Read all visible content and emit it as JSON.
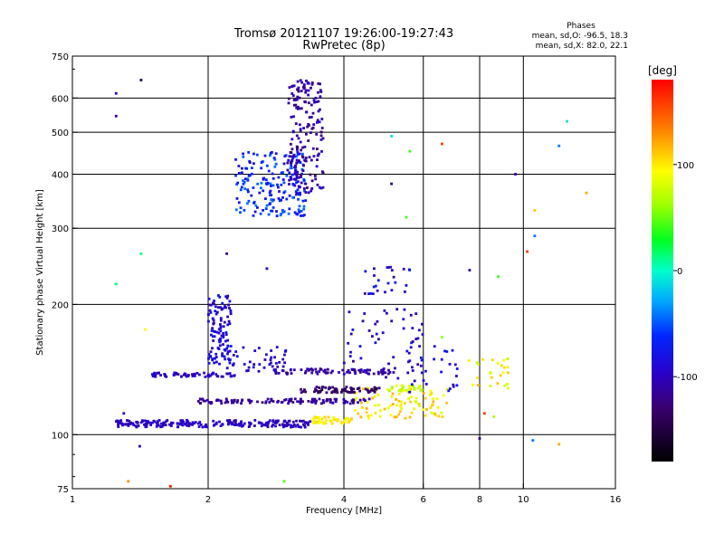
{
  "header": {
    "title_line1": "Tromsø 20121107 19:26:00-19:27:43",
    "title_line2": "RwPretec (8p)"
  },
  "stats": {
    "heading": "Phases",
    "line1": "mean, sd,O: -96.5, 18.3",
    "line2": "mean, sd,X:  82.0, 22.1"
  },
  "colorbar": {
    "title": "[deg]",
    "range": [
      -180,
      180
    ],
    "ticks": [
      {
        "value": 100,
        "label": "100"
      },
      {
        "value": 0,
        "label": "0"
      },
      {
        "value": -100,
        "label": "-100"
      }
    ]
  },
  "chart_data": {
    "type": "scatter",
    "xlabel": "Frequency [MHz]",
    "ylabel": "Stationary phase Virtual Height [km]",
    "xscale": "log",
    "yscale": "log",
    "xlim": [
      1,
      16
    ],
    "ylim": [
      75,
      750
    ],
    "grid": true,
    "xticks": [
      {
        "value": 1,
        "label": "1"
      },
      {
        "value": 2,
        "label": "2"
      },
      {
        "value": 4,
        "label": "4"
      },
      {
        "value": 6,
        "label": "6"
      },
      {
        "value": 8,
        "label": "8"
      },
      {
        "value": 10,
        "label": "10"
      },
      {
        "value": 16,
        "label": "16"
      }
    ],
    "yticks": [
      {
        "value": 75,
        "label": "75"
      },
      {
        "value": 100,
        "label": "100"
      },
      {
        "value": 200,
        "label": "200"
      },
      {
        "value": 300,
        "label": "300"
      },
      {
        "value": 400,
        "label": "400"
      },
      {
        "value": 500,
        "label": "500"
      },
      {
        "value": 600,
        "label": "600"
      },
      {
        "value": 750,
        "label": "750"
      }
    ],
    "xgrid": [
      2,
      4,
      6,
      8,
      10
    ],
    "ygrid": [
      100,
      200,
      300,
      400,
      500,
      600
    ],
    "clusters": [
      {
        "x": [
          1.25,
          3.4
        ],
        "y": [
          104,
          108
        ],
        "phase": [
          -110,
          -90
        ],
        "count": 220
      },
      {
        "x": [
          3.4,
          4.2
        ],
        "y": [
          106,
          110
        ],
        "phase": [
          85,
          110
        ],
        "count": 45
      },
      {
        "x": [
          4.2,
          6.9
        ],
        "y": [
          109,
          128
        ],
        "phase": [
          80,
          120
        ],
        "count": 90
      },
      {
        "x": [
          1.9,
          4.6
        ],
        "y": [
          118,
          121
        ],
        "phase": [
          -125,
          -100
        ],
        "count": 110
      },
      {
        "x": [
          3.2,
          4.8
        ],
        "y": [
          125,
          129
        ],
        "phase": [
          -150,
          -120
        ],
        "count": 70
      },
      {
        "x": [
          5.0,
          6.0
        ],
        "y": [
          126,
          130
        ],
        "phase": [
          60,
          90
        ],
        "count": 30
      },
      {
        "x": [
          1.5,
          2.3
        ],
        "y": [
          136,
          139
        ],
        "phase": [
          -110,
          -85
        ],
        "count": 60
      },
      {
        "x": [
          2.8,
          5.2
        ],
        "y": [
          138,
          142
        ],
        "phase": [
          -125,
          -95
        ],
        "count": 80
      },
      {
        "x": [
          2.2,
          3.0
        ],
        "y": [
          140,
          160
        ],
        "phase": [
          -110,
          -80
        ],
        "count": 45
      },
      {
        "x": [
          2.0,
          2.25
        ],
        "y": [
          145,
          210
        ],
        "phase": [
          -110,
          -70
        ],
        "count": 110
      },
      {
        "x": [
          4.0,
          6.0
        ],
        "y": [
          135,
          195
        ],
        "phase": [
          -115,
          -80
        ],
        "count": 45
      },
      {
        "x": [
          5.5,
          7.2
        ],
        "y": [
          125,
          165
        ],
        "phase": [
          -110,
          -70
        ],
        "count": 35
      },
      {
        "x": [
          7.5,
          9.3
        ],
        "y": [
          128,
          150
        ],
        "phase": [
          70,
          120
        ],
        "count": 25
      },
      {
        "x": [
          2.3,
          3.3
        ],
        "y": [
          320,
          450
        ],
        "phase": [
          -90,
          -40
        ],
        "count": 190
      },
      {
        "x": [
          3.0,
          3.6
        ],
        "y": [
          360,
          660
        ],
        "phase": [
          -130,
          -90
        ],
        "count": 180
      },
      {
        "x": [
          4.4,
          5.6
        ],
        "y": [
          210,
          245
        ],
        "phase": [
          -120,
          -60
        ],
        "count": 25
      }
    ],
    "outliers": [
      {
        "x": 1.25,
        "y": 615,
        "phase": -105
      },
      {
        "x": 1.25,
        "y": 545,
        "phase": -120
      },
      {
        "x": 1.42,
        "y": 660,
        "phase": -150
      },
      {
        "x": 1.3,
        "y": 112,
        "phase": -100
      },
      {
        "x": 1.41,
        "y": 94,
        "phase": -110
      },
      {
        "x": 1.25,
        "y": 223,
        "phase": 10
      },
      {
        "x": 1.42,
        "y": 262,
        "phase": 15
      },
      {
        "x": 1.45,
        "y": 175,
        "phase": 95
      },
      {
        "x": 1.33,
        "y": 78,
        "phase": 130
      },
      {
        "x": 1.65,
        "y": 76,
        "phase": 170
      },
      {
        "x": 2.95,
        "y": 78,
        "phase": 45
      },
      {
        "x": 2.2,
        "y": 262,
        "phase": -110
      },
      {
        "x": 2.7,
        "y": 242,
        "phase": -105
      },
      {
        "x": 5.6,
        "y": 452,
        "phase": 40
      },
      {
        "x": 5.1,
        "y": 490,
        "phase": -10
      },
      {
        "x": 6.6,
        "y": 470,
        "phase": 160
      },
      {
        "x": 5.1,
        "y": 380,
        "phase": -120
      },
      {
        "x": 5.5,
        "y": 318,
        "phase": 40
      },
      {
        "x": 7.6,
        "y": 240,
        "phase": -110
      },
      {
        "x": 8.8,
        "y": 232,
        "phase": 40
      },
      {
        "x": 9.6,
        "y": 400,
        "phase": -110
      },
      {
        "x": 10.6,
        "y": 330,
        "phase": 110
      },
      {
        "x": 10.6,
        "y": 288,
        "phase": -40
      },
      {
        "x": 10.2,
        "y": 265,
        "phase": 160
      },
      {
        "x": 12.0,
        "y": 465,
        "phase": -40
      },
      {
        "x": 12.5,
        "y": 530,
        "phase": -10
      },
      {
        "x": 13.8,
        "y": 362,
        "phase": 120
      },
      {
        "x": 10.5,
        "y": 97,
        "phase": -40
      },
      {
        "x": 12.0,
        "y": 95,
        "phase": 120
      },
      {
        "x": 8.0,
        "y": 98,
        "phase": -120
      },
      {
        "x": 8.2,
        "y": 112,
        "phase": 160
      },
      {
        "x": 6.6,
        "y": 168,
        "phase": 60
      },
      {
        "x": 8.6,
        "y": 110,
        "phase": 70
      }
    ]
  }
}
